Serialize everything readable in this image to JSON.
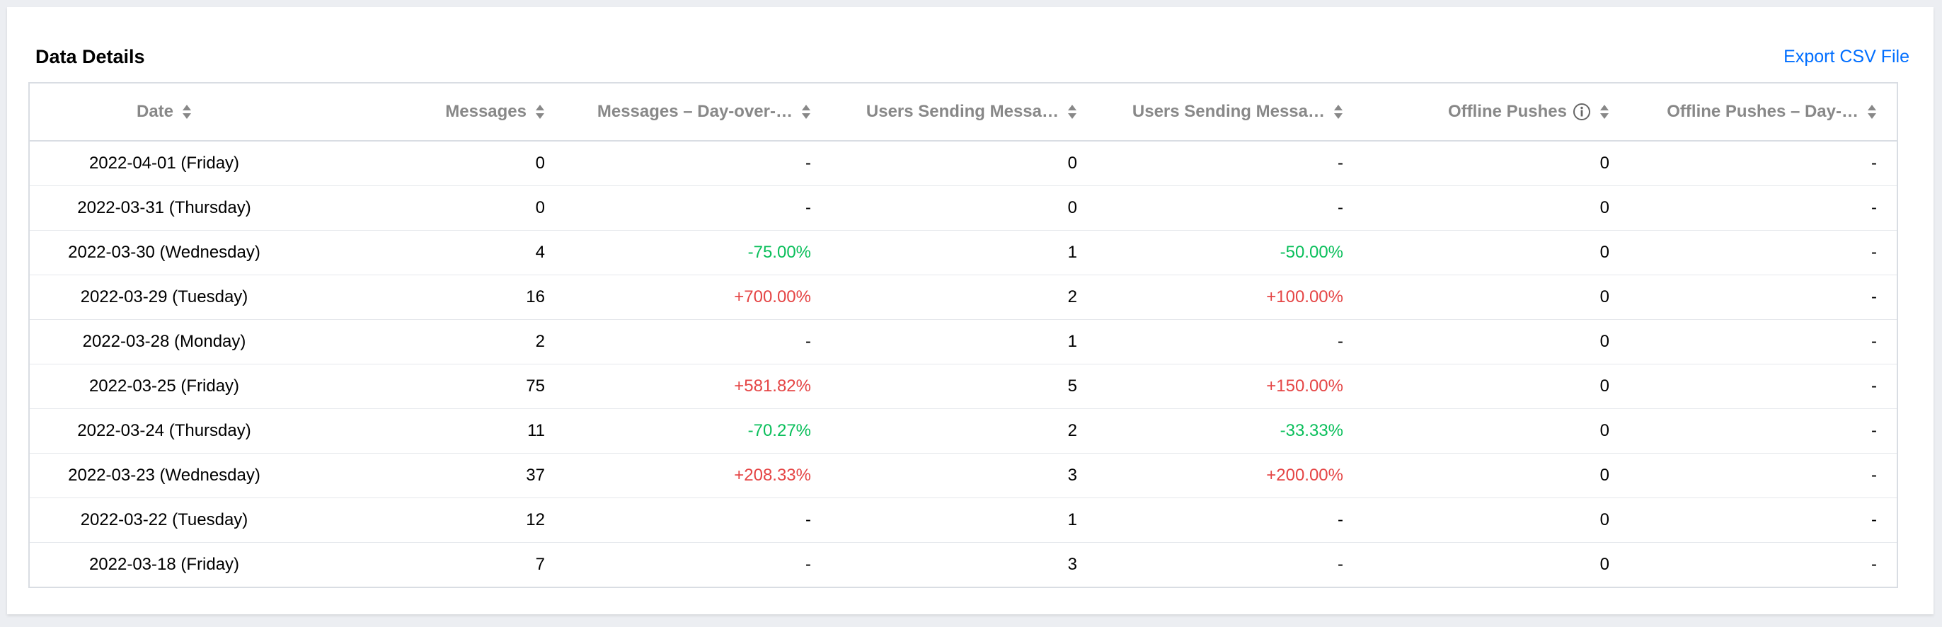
{
  "card": {
    "title": "Data Details",
    "export_label": "Export CSV File"
  },
  "colors": {
    "accent_link": "#006eff",
    "increase": "#e54545",
    "decrease": "#0abf5b",
    "header_text": "#888888"
  },
  "icons": {
    "sort": "sort-updown-icon",
    "info": "info-circle-icon"
  },
  "table": {
    "headers": [
      "Date",
      "Messages",
      "Messages – Day-over-…",
      "Users Sending Messa…",
      "Users Sending Messa…",
      "Offline Pushes",
      "Offline Pushes – Day-…"
    ],
    "rows": [
      {
        "date": "2022-04-01 (Friday)",
        "messages": "0",
        "messages_dod": "-",
        "users": "0",
        "users_dod": "-",
        "offline": "0",
        "offline_dod": "-"
      },
      {
        "date": "2022-03-31 (Thursday)",
        "messages": "0",
        "messages_dod": "-",
        "users": "0",
        "users_dod": "-",
        "offline": "0",
        "offline_dod": "-"
      },
      {
        "date": "2022-03-30 (Wednesday)",
        "messages": "4",
        "messages_dod": "-75.00%",
        "users": "1",
        "users_dod": "-50.00%",
        "offline": "0",
        "offline_dod": "-"
      },
      {
        "date": "2022-03-29 (Tuesday)",
        "messages": "16",
        "messages_dod": "+700.00%",
        "users": "2",
        "users_dod": "+100.00%",
        "offline": "0",
        "offline_dod": "-"
      },
      {
        "date": "2022-03-28 (Monday)",
        "messages": "2",
        "messages_dod": "-",
        "users": "1",
        "users_dod": "-",
        "offline": "0",
        "offline_dod": "-"
      },
      {
        "date": "2022-03-25 (Friday)",
        "messages": "75",
        "messages_dod": "+581.82%",
        "users": "5",
        "users_dod": "+150.00%",
        "offline": "0",
        "offline_dod": "-"
      },
      {
        "date": "2022-03-24 (Thursday)",
        "messages": "11",
        "messages_dod": "-70.27%",
        "users": "2",
        "users_dod": "-33.33%",
        "offline": "0",
        "offline_dod": "-"
      },
      {
        "date": "2022-03-23 (Wednesday)",
        "messages": "37",
        "messages_dod": "+208.33%",
        "users": "3",
        "users_dod": "+200.00%",
        "offline": "0",
        "offline_dod": "-"
      },
      {
        "date": "2022-03-22 (Tuesday)",
        "messages": "12",
        "messages_dod": "-",
        "users": "1",
        "users_dod": "-",
        "offline": "0",
        "offline_dod": "-"
      },
      {
        "date": "2022-03-18 (Friday)",
        "messages": "7",
        "messages_dod": "-",
        "users": "3",
        "users_dod": "-",
        "offline": "0",
        "offline_dod": "-"
      }
    ]
  }
}
